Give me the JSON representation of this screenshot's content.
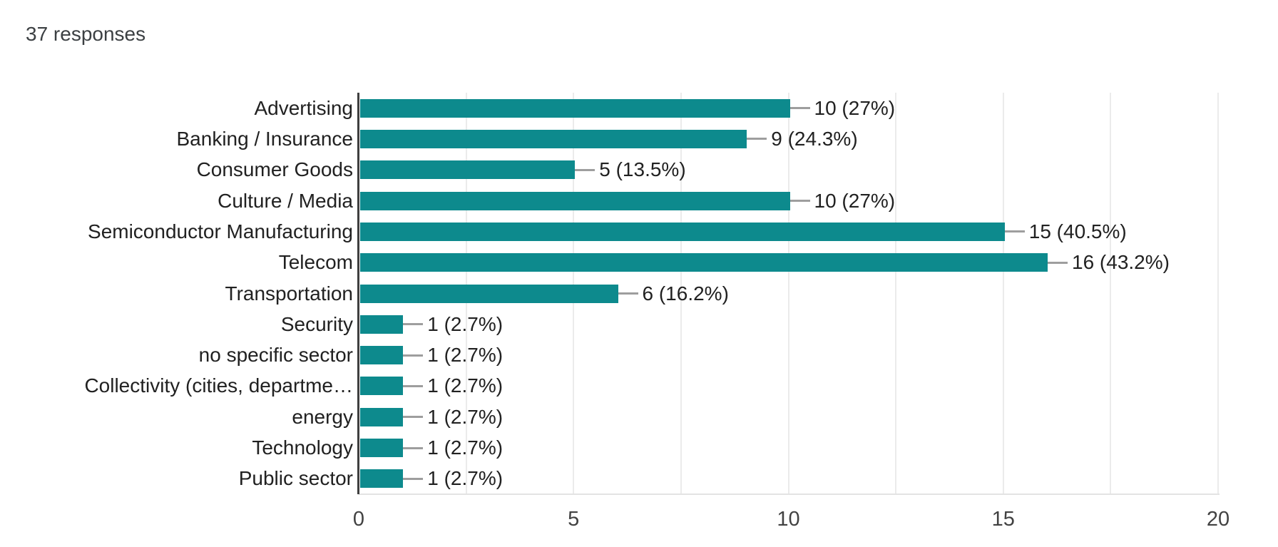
{
  "header": {
    "responses_label": "37 responses"
  },
  "colors": {
    "bar": "#0D8A8D",
    "connector": "#9e9e9e",
    "axis_line": "#3f3f3f",
    "gridline": "#ebebeb",
    "baseline": "#e3e3e3",
    "header_text": "#3c4043",
    "label_text": "#212121",
    "tick_text": "#424242",
    "background": "#ffffff"
  },
  "chart_data": {
    "type": "bar",
    "orientation": "horizontal",
    "title": "37 responses",
    "categories": [
      "Advertising",
      "Banking / Insurance",
      "Consumer Goods",
      "Culture / Media",
      "Semiconductor Manufacturing",
      "Telecom",
      "Transportation",
      "Security",
      "no specific sector",
      "Collectivity (cities, departme…",
      "energy",
      "Technology",
      "Public sector"
    ],
    "values": [
      10,
      9,
      5,
      10,
      15,
      16,
      6,
      1,
      1,
      1,
      1,
      1,
      1
    ],
    "value_labels": [
      "10 (27%)",
      "9 (24.3%)",
      "5 (13.5%)",
      "10 (27%)",
      "15 (40.5%)",
      "16 (43.2%)",
      "6 (16.2%)",
      "1 (2.7%)",
      "1 (2.7%)",
      "1 (2.7%)",
      "1 (2.7%)",
      "1 (2.7%)",
      "1 (2.7%)"
    ],
    "xlabel": "",
    "ylabel": "",
    "xlim": [
      0,
      20
    ],
    "xticks": [
      0,
      5,
      10,
      15,
      20
    ],
    "minor_grid_step": 2.5,
    "grid": true,
    "legend": "none"
  }
}
